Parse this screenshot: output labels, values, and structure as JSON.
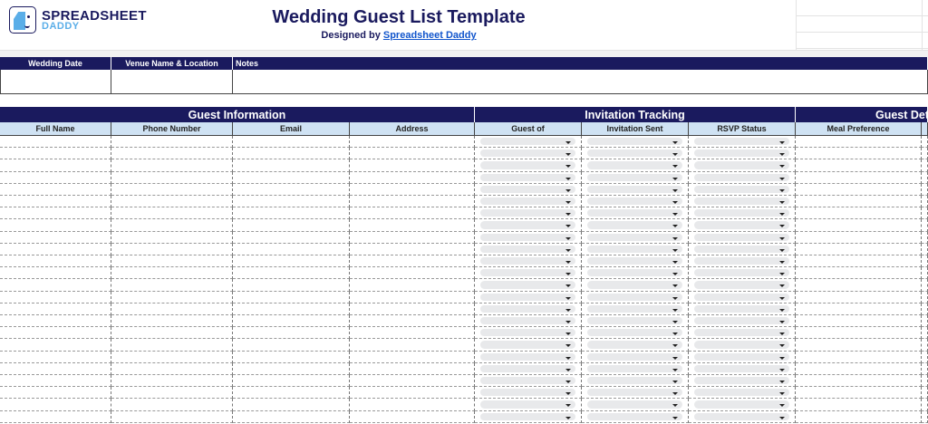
{
  "brand": {
    "line1": "SPREADSHEET",
    "line2": "DADDY"
  },
  "title": "Wedding Guest List Template",
  "subtitle": {
    "prefix": "Designed by",
    "link": "Spreadsheet Daddy"
  },
  "event_fields": [
    {
      "label": "Wedding Date"
    },
    {
      "label": "Venue Name & Location"
    },
    {
      "label": "Notes"
    }
  ],
  "groups": [
    {
      "label": "Guest Information"
    },
    {
      "label": "Invitation Tracking"
    },
    {
      "label": "Guest Det"
    }
  ],
  "columns": [
    {
      "label": "Full Name"
    },
    {
      "label": "Phone Number"
    },
    {
      "label": "Email"
    },
    {
      "label": "Address"
    },
    {
      "label": "Guest of",
      "dropdown": true
    },
    {
      "label": "Invitation Sent",
      "dropdown": true
    },
    {
      "label": "RSVP Status",
      "dropdown": true
    },
    {
      "label": "Meal Preference"
    },
    {
      "label": ""
    }
  ],
  "row_count": 24,
  "colors": {
    "navy": "#1a1a5e",
    "subheader": "#cfe2f3",
    "brand_light": "#5aaee8",
    "link": "#1155cc"
  }
}
